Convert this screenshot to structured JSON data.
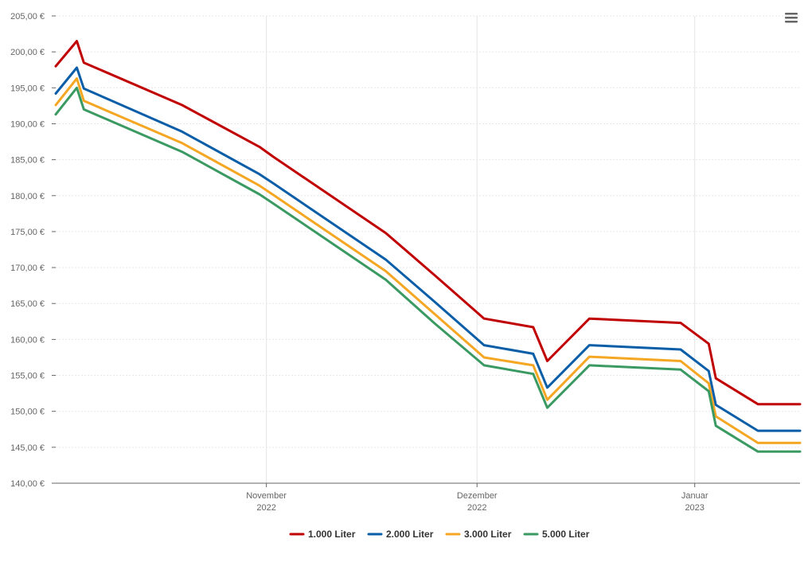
{
  "chart_data": {
    "type": "line",
    "x_dates": [
      "2022-10-02",
      "2022-10-05",
      "2022-10-06",
      "2022-10-20",
      "2022-10-31",
      "2022-11-02",
      "2022-11-18",
      "2022-11-25",
      "2022-12-02",
      "2022-12-09",
      "2022-12-11",
      "2022-12-17",
      "2022-12-30",
      "2023-01-03",
      "2023-01-04",
      "2023-01-10",
      "2023-01-16"
    ],
    "series": [
      {
        "name": "1.000 Liter",
        "color": "#c00000",
        "values": [
          198.0,
          201.5,
          198.5,
          192.6,
          186.8,
          185.4,
          174.8,
          168.9,
          162.9,
          161.7,
          157.0,
          162.9,
          162.3,
          159.4,
          154.6,
          151.0,
          151.0
        ]
      },
      {
        "name": "2.000 Liter",
        "color": "#0a5ea8",
        "values": [
          194.2,
          197.8,
          194.9,
          188.9,
          183.0,
          181.7,
          171.1,
          165.2,
          159.2,
          158.0,
          153.3,
          159.2,
          158.6,
          155.6,
          150.9,
          147.3,
          147.3
        ]
      },
      {
        "name": "3.000 Liter",
        "color": "#f5a623",
        "values": [
          192.6,
          196.3,
          193.2,
          187.3,
          181.4,
          180.1,
          169.5,
          163.5,
          157.5,
          156.4,
          151.6,
          157.6,
          157.0,
          153.9,
          149.3,
          145.6,
          145.6
        ]
      },
      {
        "name": "5.000 Liter",
        "color": "#3a9a62",
        "values": [
          191.3,
          195.0,
          192.0,
          186.1,
          180.2,
          178.9,
          168.3,
          162.2,
          156.4,
          155.2,
          150.5,
          156.4,
          155.8,
          152.8,
          148.0,
          144.4,
          144.4
        ]
      }
    ],
    "y_ticks": [
      "140,00 €",
      "145,00 €",
      "150,00 €",
      "155,00 €",
      "160,00 €",
      "165,00 €",
      "170,00 €",
      "175,00 €",
      "180,00 €",
      "185,00 €",
      "190,00 €",
      "195,00 €",
      "200,00 €",
      "205,00 €"
    ],
    "ylim": [
      140,
      205
    ],
    "xlim": [
      "2022-10-02",
      "2023-01-16"
    ],
    "x_ticks": [
      {
        "date": "2022-11-01",
        "label": "November",
        "year": "2022"
      },
      {
        "date": "2022-12-01",
        "label": "Dezember",
        "year": "2022"
      },
      {
        "date": "2023-01-01",
        "label": "Januar",
        "year": "2023"
      }
    ],
    "grid": true,
    "legend_position": "bottom-center"
  },
  "menu": {
    "icon": "hamburger-menu-icon"
  }
}
